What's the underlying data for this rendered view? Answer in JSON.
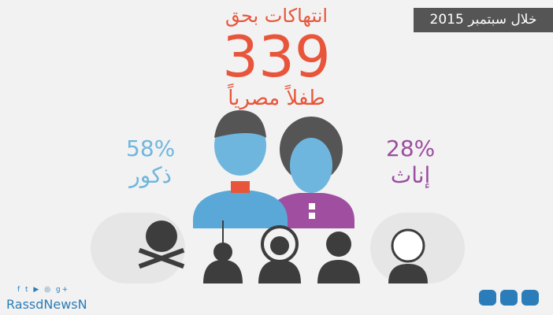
{
  "date_label": "خلال سبتمبر 2015",
  "headline": {
    "line1": "انتهاكات بحق",
    "number": "339",
    "line2": "طفلاً مصرياً"
  },
  "boys": {
    "percent": "58%",
    "label": "ذكور",
    "color": "#6fb6de"
  },
  "girls": {
    "percent": "28%",
    "label": "إناث",
    "color": "#9b4d9f"
  },
  "accent": "#e8553a",
  "icons": [
    "skull-crossbones-icon",
    "hanged-person-icon",
    "target-person-icon",
    "assaulted-person-icon",
    "injured-child-icon"
  ],
  "footer": {
    "social": "f t ▶ ◎ g+",
    "brand": "RassdNewsN"
  }
}
